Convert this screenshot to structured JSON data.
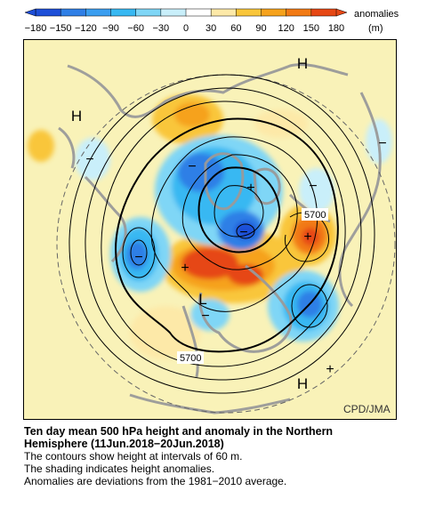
{
  "colorbar": {
    "ticks": [
      "−180",
      "−150",
      "−120",
      "−90",
      "−60",
      "−30",
      "0",
      "30",
      "60",
      "90",
      "120",
      "150",
      "180"
    ],
    "colors": [
      "#1e4fd8",
      "#2f7fe6",
      "#3a9ef0",
      "#37b8f2",
      "#7fd6f6",
      "#c9effa",
      "#ffffff",
      "#fde9a8",
      "#f9c63a",
      "#f6a21c",
      "#f27a14",
      "#e64714"
    ],
    "label_line1": "anomalies",
    "label_line2": "(m)"
  },
  "map": {
    "background": "#f9f2b8",
    "land_color": "#9a9a9a",
    "high_mark": "H",
    "low_mark": "L",
    "plus_mark": "+",
    "minus_mark": "−",
    "contour_label": "5700",
    "credit": "CPD/JMA"
  },
  "caption": {
    "title_line1": "Ten day mean 500 hPa height and anomaly in the Northern",
    "title_line2": "Hemisphere (11Jun.2018−20Jun.2018)",
    "line1": "The contours show height at intervals of 60 m.",
    "line2": "The shading indicates height anomalies.",
    "line3": "Anomalies are deviations from the 1981−2010 average."
  }
}
